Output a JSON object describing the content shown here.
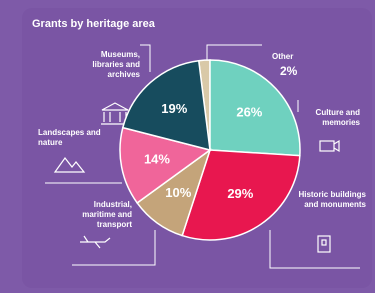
{
  "chart_data": {
    "type": "pie",
    "title": "Grants by heritage area",
    "categories": [
      "Other",
      "Culture and memories",
      "Historic buildings and monuments",
      "Industrial, maritime and transport",
      "Landscapes and nature",
      "Museums, libraries and archives"
    ],
    "values": [
      2,
      26,
      29,
      10,
      14,
      19
    ],
    "value_labels": [
      "2%",
      "26%",
      "29%",
      "10%",
      "14%",
      "19%"
    ],
    "colors": [
      "#d9c9a8",
      "#6fd1bf",
      "#e8174f",
      "#c4a47a",
      "#f0659a",
      "#174c5e"
    ]
  }
}
